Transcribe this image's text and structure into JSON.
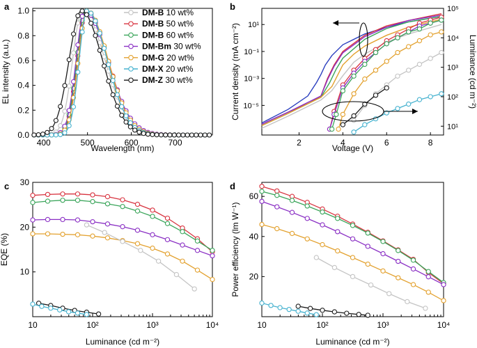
{
  "colors": {
    "DM-B 10": "#c4c4c4",
    "DM-B 50": "#d8333f",
    "DM-B 60": "#3aa55a",
    "DM-Bm 30": "#8a2fc4",
    "DM-G 20": "#e3a12e",
    "DM-X 20": "#46b2cf",
    "DM-Z 30": "#1a1a1a",
    "DM-Bblue": "#2b3fbf"
  },
  "chart_data": [
    {
      "panel": "a",
      "type": "line",
      "xlabel": "Wavelength (nm)",
      "ylabel": "EL intensity (a.u.)",
      "xlim": [
        375,
        785
      ],
      "ylim": [
        0,
        1.02
      ],
      "xticks": [
        "400",
        "500",
        "600",
        "700"
      ],
      "yticks": [
        "0.0",
        "0.2",
        "0.4",
        "0.6",
        "0.8",
        "1.0"
      ],
      "legend": {
        "placement": "top-right",
        "entries": [
          {
            "bold": "DM-B",
            "rest": " 10 wt%",
            "series": "DM-B 10"
          },
          {
            "bold": "DM-B",
            "rest": " 50 wt%",
            "series": "DM-B 50"
          },
          {
            "bold": "DM-B",
            "rest": " 60 wt%",
            "series": "DM-B 60"
          },
          {
            "bold": "DM-Bm",
            "rest": " 30 wt%",
            "series": "DM-Bm 30"
          },
          {
            "bold": "DM-G",
            "rest": " 20 wt%",
            "series": "DM-G 20"
          },
          {
            "bold": "DM-X",
            "rest": " 20 wt%",
            "series": "DM-X 20"
          },
          {
            "bold": "DM-Z",
            "rest": " 30 wt%",
            "series": "DM-Z 30"
          }
        ]
      },
      "series": [
        {
          "key": "DM-B 10",
          "peak": 488,
          "wl": 22,
          "wr": 52
        },
        {
          "key": "DM-B 50",
          "peak": 497,
          "wl": 20,
          "wr": 50
        },
        {
          "key": "DM-B 60",
          "peak": 496,
          "wl": 20,
          "wr": 50
        },
        {
          "key": "DM-Bm 30",
          "peak": 494,
          "wl": 20,
          "wr": 52
        },
        {
          "key": "DM-G 20",
          "peak": 499,
          "wl": 20,
          "wr": 48
        },
        {
          "key": "DM-X 20",
          "peak": 499,
          "wl": 18,
          "wr": 46
        },
        {
          "key": "DM-Z 30",
          "peak": 486,
          "wl": 28,
          "wr": 48
        }
      ]
    },
    {
      "panel": "b",
      "type": "line",
      "xlabel": "Voltage (V)",
      "ylabel": "Current  density (mA cm⁻²)",
      "ylabel2": "Luminance (cd m⁻²)",
      "xlim": [
        0.3,
        8.6
      ],
      "ylim_log10": [
        -7.2,
        2.2
      ],
      "y2lim_log10": [
        0.7,
        5.0
      ],
      "xticks": [
        "2",
        "4",
        "6",
        "8"
      ],
      "yticks": [
        "10⁻⁵",
        "10⁻³",
        "10⁻¹",
        "10¹"
      ],
      "y2ticks": [
        "10¹",
        "10²",
        "10³",
        "10⁴",
        "10⁵"
      ],
      "current_density": [
        {
          "key": "DM-Bblue",
          "x": [
            0.3,
            1.5,
            2.4,
            2.8,
            3.0,
            3.2,
            3.5,
            4.0,
            5.0,
            6.0,
            7.0,
            8.5
          ],
          "log10y": [
            -6.3,
            -5.3,
            -4.3,
            -3.3,
            -2.7,
            -2.0,
            -1.3,
            -0.5,
            0.3,
            0.8,
            1.2,
            1.6
          ]
        },
        {
          "key": "DM-B 50",
          "x": [
            0.3,
            1.5,
            2.5,
            3.0,
            3.3,
            3.6,
            4.0,
            5.0,
            6.0,
            7.0,
            8.5
          ],
          "log10y": [
            -6.4,
            -5.5,
            -4.8,
            -4.3,
            -3.0,
            -2.0,
            -1.0,
            0.2,
            0.9,
            1.3,
            1.8
          ]
        },
        {
          "key": "DM-Bm 30",
          "x": [
            0.3,
            1.5,
            2.5,
            3.0,
            3.3,
            3.6,
            4.0,
            5.0,
            6.0,
            7.0,
            8.5
          ],
          "log10y": [
            -6.4,
            -5.5,
            -4.7,
            -4.3,
            -3.1,
            -2.1,
            -1.1,
            0.1,
            0.8,
            1.3,
            1.7
          ]
        },
        {
          "key": "DM-B 60",
          "x": [
            0.3,
            1.5,
            2.5,
            3.0,
            3.4,
            3.7,
            4.0,
            5.0,
            6.0,
            7.0,
            8.5
          ],
          "log10y": [
            -6.5,
            -5.6,
            -4.8,
            -4.4,
            -3.3,
            -2.3,
            -1.5,
            -0.1,
            0.7,
            1.2,
            1.6
          ]
        },
        {
          "key": "DM-G 20",
          "x": [
            0.3,
            1.5,
            2.5,
            3.0,
            3.5,
            4.0,
            4.5,
            5.0,
            6.0,
            7.0,
            8.5
          ],
          "log10y": [
            -6.5,
            -5.6,
            -4.8,
            -4.4,
            -3.6,
            -2.0,
            -1.2,
            -0.6,
            0.2,
            0.8,
            1.4
          ]
        },
        {
          "key": "DM-B 10",
          "x": [
            0.3,
            1.5,
            2.5,
            3.0,
            3.5,
            4.0,
            4.5,
            5.0,
            6.0,
            7.0,
            8.5
          ],
          "log10y": [
            -6.7,
            -5.8,
            -5.0,
            -4.6,
            -3.9,
            -2.8,
            -1.8,
            -1.2,
            -0.3,
            0.3,
            1.0
          ]
        }
      ],
      "luminance": [
        {
          "key": "DM-B 50",
          "x": [
            3.4,
            3.6,
            4.0,
            4.5,
            5.0,
            5.5,
            6.0,
            6.5,
            7.0,
            7.5,
            8.0,
            8.5
          ],
          "log10y": [
            0.9,
            1.5,
            2.4,
            2.9,
            3.3,
            3.6,
            3.9,
            4.1,
            4.3,
            4.5,
            4.6,
            4.7
          ]
        },
        {
          "key": "DM-Bm 30",
          "x": [
            3.4,
            3.6,
            4.0,
            4.5,
            5.0,
            5.5,
            6.0,
            6.5,
            7.0,
            7.5,
            8.0,
            8.5
          ],
          "log10y": [
            0.9,
            1.4,
            2.3,
            2.8,
            3.2,
            3.5,
            3.8,
            4.0,
            4.2,
            4.4,
            4.5,
            4.6
          ]
        },
        {
          "key": "DM-B 60",
          "x": [
            3.5,
            3.7,
            4.0,
            4.5,
            5.0,
            5.5,
            6.0,
            6.5,
            7.0,
            7.5,
            8.0,
            8.5
          ],
          "log10y": [
            0.9,
            1.4,
            2.2,
            2.7,
            3.1,
            3.5,
            3.8,
            4.0,
            4.2,
            4.3,
            4.5,
            4.6
          ]
        },
        {
          "key": "DM-G 20",
          "x": [
            3.8,
            4.0,
            4.5,
            5.0,
            5.5,
            6.0,
            6.5,
            7.0,
            7.5,
            8.0,
            8.5
          ],
          "log10y": [
            0.9,
            1.4,
            2.1,
            2.6,
            2.9,
            3.2,
            3.5,
            3.7,
            3.9,
            4.1,
            4.2
          ]
        },
        {
          "key": "DM-B 10",
          "x": [
            4.5,
            5.0,
            5.5,
            6.0,
            6.5,
            7.0,
            7.5,
            8.0,
            8.5
          ],
          "log10y": [
            1.2,
            1.7,
            2.1,
            2.4,
            2.7,
            2.9,
            3.1,
            3.3,
            3.5
          ]
        },
        {
          "key": "DM-Z 30",
          "x": [
            4.0,
            4.5,
            5.0,
            5.5,
            6.0
          ],
          "log10y": [
            1.05,
            1.35,
            1.75,
            2.05,
            2.3
          ]
        },
        {
          "key": "DM-X 20",
          "x": [
            4.5,
            5.0,
            5.5,
            6.0,
            6.5,
            7.0,
            7.5,
            8.0,
            8.5
          ],
          "log10y": [
            0.8,
            1.05,
            1.25,
            1.45,
            1.6,
            1.75,
            1.9,
            2.0,
            2.1
          ]
        }
      ]
    },
    {
      "panel": "c",
      "type": "line",
      "xlabel": "Luminance (cd m⁻²)",
      "ylabel": "EQE (%)",
      "xlim_log10": [
        1,
        4
      ],
      "ylim": [
        0,
        30
      ],
      "xticks": [
        "10",
        "10²",
        "10³",
        "10⁴"
      ],
      "yticks": [
        "10",
        "20",
        "30"
      ],
      "series": [
        {
          "key": "DM-B 50",
          "log10x": [
            1.0,
            1.25,
            1.5,
            1.75,
            2.0,
            2.25,
            2.5,
            2.75,
            3.0,
            3.25,
            3.5,
            3.75,
            4.0
          ],
          "y": [
            27.1,
            27.3,
            27.4,
            27.4,
            27.2,
            26.8,
            26.1,
            25.1,
            23.8,
            22.0,
            19.8,
            17.4,
            14.5
          ]
        },
        {
          "key": "DM-B 60",
          "log10x": [
            1.0,
            1.25,
            1.5,
            1.75,
            2.0,
            2.25,
            2.5,
            2.75,
            3.0,
            3.25,
            3.5,
            3.75,
            4.0
          ],
          "y": [
            25.5,
            25.8,
            26.0,
            26.0,
            25.7,
            25.2,
            24.6,
            23.6,
            22.4,
            20.8,
            19.0,
            16.9,
            14.8
          ]
        },
        {
          "key": "DM-Bm 30",
          "log10x": [
            1.0,
            1.25,
            1.5,
            1.75,
            2.0,
            2.25,
            2.5,
            2.75,
            3.0,
            3.25,
            3.5,
            3.75,
            4.0
          ],
          "y": [
            21.6,
            21.7,
            21.7,
            21.6,
            21.2,
            20.7,
            20.1,
            19.3,
            18.3,
            17.2,
            16.0,
            14.8,
            13.6
          ]
        },
        {
          "key": "DM-G 20",
          "log10x": [
            1.0,
            1.25,
            1.5,
            1.75,
            2.0,
            2.25,
            2.5,
            2.75,
            3.0,
            3.25,
            3.5,
            3.75,
            4.0
          ],
          "y": [
            18.5,
            18.5,
            18.4,
            18.3,
            18.0,
            17.6,
            17.0,
            16.3,
            15.3,
            14.0,
            12.4,
            10.4,
            8.3
          ]
        },
        {
          "key": "DM-B 10",
          "log10x": [
            1.9,
            2.2,
            2.5,
            2.8,
            3.1,
            3.4,
            3.7
          ],
          "y": [
            20.5,
            18.8,
            16.8,
            14.8,
            12.4,
            9.4,
            6.2
          ]
        },
        {
          "key": "DM-Z 30",
          "log10x": [
            1.1,
            1.3,
            1.5,
            1.7,
            1.9,
            2.1
          ],
          "y": [
            3.0,
            2.5,
            1.9,
            1.4,
            1.0,
            0.6
          ]
        },
        {
          "key": "DM-X 20",
          "log10x": [
            1.0,
            1.15,
            1.3,
            1.45,
            1.6,
            1.75,
            1.9
          ],
          "y": [
            2.8,
            2.3,
            1.9,
            1.5,
            1.1,
            0.8,
            0.5
          ]
        }
      ]
    },
    {
      "panel": "d",
      "type": "line",
      "xlabel": "Luminance (cd m⁻²)",
      "ylabel": "Power efficiency (lm W⁻¹)",
      "xlim_log10": [
        1,
        4
      ],
      "ylim": [
        0,
        67
      ],
      "xticks": [
        "10",
        "10²",
        "10³",
        "10⁴"
      ],
      "yticks": [
        "20",
        "40",
        "60"
      ],
      "series": [
        {
          "key": "DM-B 50",
          "log10x": [
            1.0,
            1.25,
            1.5,
            1.75,
            2.0,
            2.25,
            2.5,
            2.75,
            3.0,
            3.25,
            3.5,
            3.75,
            4.0
          ],
          "y": [
            65.0,
            62.7,
            60.0,
            57.0,
            53.7,
            50.1,
            46.2,
            42.1,
            37.8,
            33.3,
            28.6,
            22.0,
            16.5
          ]
        },
        {
          "key": "DM-B 60",
          "log10x": [
            1.0,
            1.25,
            1.5,
            1.75,
            2.0,
            2.25,
            2.5,
            2.75,
            3.0,
            3.25,
            3.5,
            3.75,
            4.0
          ],
          "y": [
            62.5,
            60.5,
            58.0,
            55.2,
            52.2,
            49.0,
            45.5,
            41.7,
            37.5,
            33.0,
            28.2,
            22.5,
            17.0
          ]
        },
        {
          "key": "DM-Bm 30",
          "log10x": [
            1.0,
            1.25,
            1.5,
            1.75,
            2.0,
            2.25,
            2.5,
            2.75,
            3.0,
            3.25,
            3.5,
            3.75,
            4.0
          ],
          "y": [
            57.5,
            54.8,
            52.0,
            49.0,
            45.8,
            42.4,
            38.8,
            35.1,
            31.4,
            27.6,
            23.8,
            19.9,
            16.0
          ]
        },
        {
          "key": "DM-G 20",
          "log10x": [
            1.0,
            1.25,
            1.5,
            1.75,
            2.0,
            2.25,
            2.5,
            2.75,
            3.0,
            3.25,
            3.5,
            3.75,
            4.0
          ],
          "y": [
            46.0,
            43.9,
            41.5,
            38.8,
            35.9,
            32.8,
            29.5,
            26.2,
            22.8,
            19.4,
            16.0,
            12.2,
            8.0
          ]
        },
        {
          "key": "DM-B 10",
          "log10x": [
            1.9,
            2.2,
            2.5,
            2.8,
            3.1,
            3.4,
            3.7
          ],
          "y": [
            29.5,
            24.5,
            20.0,
            15.8,
            11.5,
            7.5,
            4.2
          ]
        },
        {
          "key": "DM-Z 30",
          "log10x": [
            1.6,
            1.8,
            2.0,
            2.2,
            2.4,
            2.6,
            2.75
          ],
          "y": [
            5.2,
            4.1,
            3.2,
            2.4,
            1.7,
            1.1,
            0.7
          ]
        },
        {
          "key": "DM-X 20",
          "log10x": [
            1.0,
            1.15,
            1.3,
            1.45,
            1.6,
            1.75,
            1.9
          ],
          "y": [
            6.8,
            5.6,
            4.5,
            3.6,
            2.7,
            1.8,
            1.0
          ]
        }
      ]
    }
  ]
}
